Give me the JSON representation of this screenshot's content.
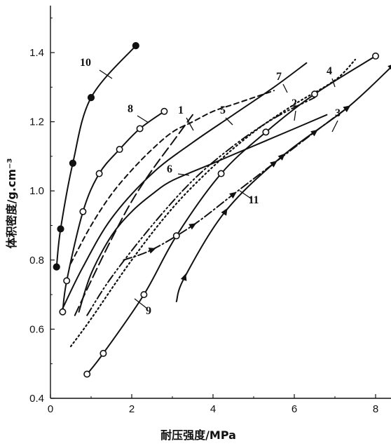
{
  "chart_data": {
    "type": "line",
    "title": "",
    "xlabel": "耐压强度/MPa",
    "ylabel": "体积密度/g.cm⁻³",
    "xlim": [
      0,
      8.5
    ],
    "ylim": [
      0.4,
      1.55
    ],
    "x_ticks": [
      "0",
      "2",
      "4",
      "6",
      "8"
    ],
    "y_ticks": [
      "0.4",
      "0.6",
      "0.8",
      "1.0",
      "1.2",
      "1.4"
    ],
    "grid": false,
    "legend": "none",
    "series": [
      {
        "name": "1",
        "style": "longdash",
        "marker": "none",
        "x": [
          0.6,
          1.0,
          1.5,
          2.0,
          2.5,
          3.0,
          3.5
        ],
        "y": [
          0.64,
          0.74,
          0.86,
          0.97,
          1.06,
          1.14,
          1.22
        ]
      },
      {
        "name": "2",
        "style": "dashdotdot",
        "marker": "none",
        "x": [
          0.9,
          1.5,
          2.5,
          3.5,
          4.5,
          5.5,
          6.5
        ],
        "y": [
          0.64,
          0.75,
          0.9,
          1.03,
          1.13,
          1.21,
          1.27
        ]
      },
      {
        "name": "3",
        "style": "dashdot",
        "marker": "tri",
        "x": [
          1.8,
          2.5,
          3.5,
          4.5,
          5.5,
          6.5,
          7.3
        ],
        "y": [
          0.8,
          0.83,
          0.9,
          0.99,
          1.08,
          1.17,
          1.24
        ]
      },
      {
        "name": "4",
        "style": "dotted",
        "marker": "none",
        "x": [
          0.5,
          1.0,
          2.0,
          3.0,
          4.0,
          5.0,
          6.0,
          7.0,
          7.5
        ],
        "y": [
          0.55,
          0.63,
          0.8,
          0.95,
          1.07,
          1.17,
          1.25,
          1.32,
          1.38
        ]
      },
      {
        "name": "5",
        "style": "dashed",
        "marker": "none",
        "x": [
          0.5,
          1.0,
          1.5,
          2.0,
          2.5,
          3.0,
          3.5,
          4.0,
          4.5,
          5.0,
          5.5
        ],
        "y": [
          0.79,
          0.9,
          0.99,
          1.06,
          1.12,
          1.17,
          1.2,
          1.23,
          1.25,
          1.27,
          1.29
        ]
      },
      {
        "name": "6",
        "style": "solid",
        "marker": "none",
        "x": [
          0.7,
          1.0,
          1.5,
          2.0,
          2.5,
          3.0,
          4.0,
          5.0,
          6.0,
          6.8
        ],
        "y": [
          0.65,
          0.76,
          0.87,
          0.94,
          0.99,
          1.03,
          1.08,
          1.13,
          1.18,
          1.22
        ]
      },
      {
        "name": "7",
        "style": "solid",
        "marker": "none",
        "x": [
          0.3,
          0.8,
          1.5,
          2.5,
          3.5,
          4.5,
          5.5,
          6.3
        ],
        "y": [
          0.66,
          0.78,
          0.92,
          1.05,
          1.14,
          1.22,
          1.3,
          1.37
        ]
      },
      {
        "name": "8",
        "style": "solid",
        "marker": "open",
        "x": [
          0.3,
          0.4,
          0.8,
          1.2,
          1.7,
          2.2,
          2.8
        ],
        "y": [
          0.65,
          0.74,
          0.94,
          1.05,
          1.12,
          1.18,
          1.23
        ]
      },
      {
        "name": "9",
        "style": "solid",
        "marker": "open",
        "x": [
          0.9,
          1.3,
          2.3,
          3.1,
          4.2,
          5.3,
          6.5,
          8.0
        ],
        "y": [
          0.47,
          0.53,
          0.7,
          0.87,
          1.05,
          1.17,
          1.28,
          1.39
        ]
      },
      {
        "name": "10",
        "style": "solid",
        "marker": "filled",
        "x": [
          0.15,
          0.25,
          0.55,
          1.0,
          2.1
        ],
        "y": [
          0.78,
          0.89,
          1.08,
          1.27,
          1.42
        ]
      },
      {
        "name": "11",
        "style": "solid",
        "marker": "tri",
        "x": [
          3.1,
          3.3,
          4.3,
          5.7,
          7.3,
          8.4
        ],
        "y": [
          0.68,
          0.75,
          0.94,
          1.1,
          1.24,
          1.36
        ]
      }
    ],
    "annotations": [
      "1",
      "2",
      "3",
      "4",
      "5",
      "6",
      "7",
      "8",
      "9",
      "10",
      "11"
    ]
  }
}
